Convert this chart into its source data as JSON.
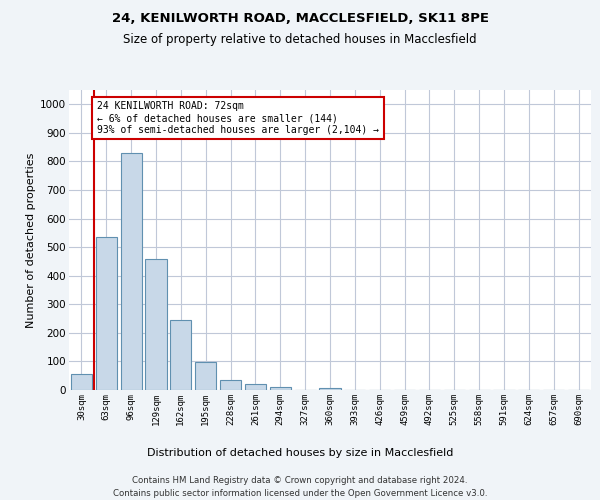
{
  "title_line1": "24, KENILWORTH ROAD, MACCLESFIELD, SK11 8PE",
  "title_line2": "Size of property relative to detached houses in Macclesfield",
  "xlabel": "Distribution of detached houses by size in Macclesfield",
  "ylabel": "Number of detached properties",
  "categories": [
    "30sqm",
    "63sqm",
    "96sqm",
    "129sqm",
    "162sqm",
    "195sqm",
    "228sqm",
    "261sqm",
    "294sqm",
    "327sqm",
    "360sqm",
    "393sqm",
    "426sqm",
    "459sqm",
    "492sqm",
    "525sqm",
    "558sqm",
    "591sqm",
    "624sqm",
    "657sqm",
    "690sqm"
  ],
  "values": [
    55,
    535,
    830,
    460,
    245,
    98,
    36,
    22,
    12,
    0,
    8,
    0,
    0,
    0,
    0,
    0,
    0,
    0,
    0,
    0,
    0
  ],
  "bar_color": "#c8d8e8",
  "bar_edge_color": "#6090b0",
  "vline_x": 0.5,
  "vline_color": "#cc0000",
  "annotation_text": "24 KENILWORTH ROAD: 72sqm\n← 6% of detached houses are smaller (144)\n93% of semi-detached houses are larger (2,104) →",
  "annotation_box_color": "#ffffff",
  "annotation_border_color": "#cc0000",
  "ylim": [
    0,
    1050
  ],
  "yticks": [
    0,
    100,
    200,
    300,
    400,
    500,
    600,
    700,
    800,
    900,
    1000
  ],
  "footer_line1": "Contains HM Land Registry data © Crown copyright and database right 2024.",
  "footer_line2": "Contains public sector information licensed under the Open Government Licence v3.0.",
  "bg_color": "#f0f4f8",
  "plot_bg_color": "#ffffff",
  "grid_color": "#c0c8d8"
}
